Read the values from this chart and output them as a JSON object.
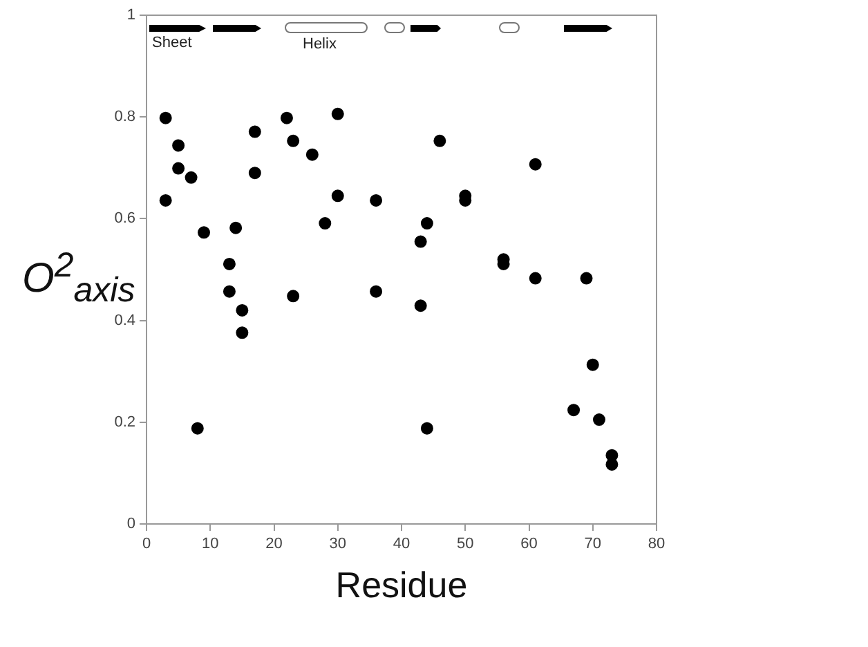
{
  "chart_data": {
    "type": "scatter",
    "xlabel": "Residue",
    "ylabel": "O$^{2}$$_{axis}$",
    "annotations": [
      "Sheet",
      "Helix"
    ],
    "x": [
      3,
      5,
      5,
      7,
      3,
      9,
      14,
      13,
      17,
      17,
      22,
      23,
      26,
      30,
      30,
      28,
      36,
      13,
      15,
      15,
      23,
      36,
      8,
      46,
      61,
      50,
      50,
      44,
      43,
      56,
      56,
      61,
      69,
      43,
      70,
      67,
      71,
      73,
      73,
      44
    ],
    "values": [
      0.798,
      0.744,
      0.699,
      0.681,
      0.636,
      0.573,
      0.582,
      0.511,
      0.771,
      0.69,
      0.798,
      0.753,
      0.726,
      0.806,
      0.645,
      0.591,
      0.636,
      0.457,
      0.42,
      0.376,
      0.448,
      0.457,
      0.188,
      0.753,
      0.707,
      0.645,
      0.636,
      0.591,
      0.555,
      0.52,
      0.511,
      0.483,
      0.483,
      0.429,
      0.313,
      0.224,
      0.205,
      0.135,
      0.117,
      0.188
    ],
    "color": "#000000",
    "marker": "circle",
    "grid": false,
    "xlim": [
      0,
      80
    ],
    "xticks": [
      0,
      10,
      20,
      30,
      40,
      50,
      60,
      70,
      80
    ],
    "ylim": [
      0,
      1
    ],
    "yticks": [
      0,
      0.2,
      0.4,
      0.6,
      0.8,
      1
    ]
  }
}
